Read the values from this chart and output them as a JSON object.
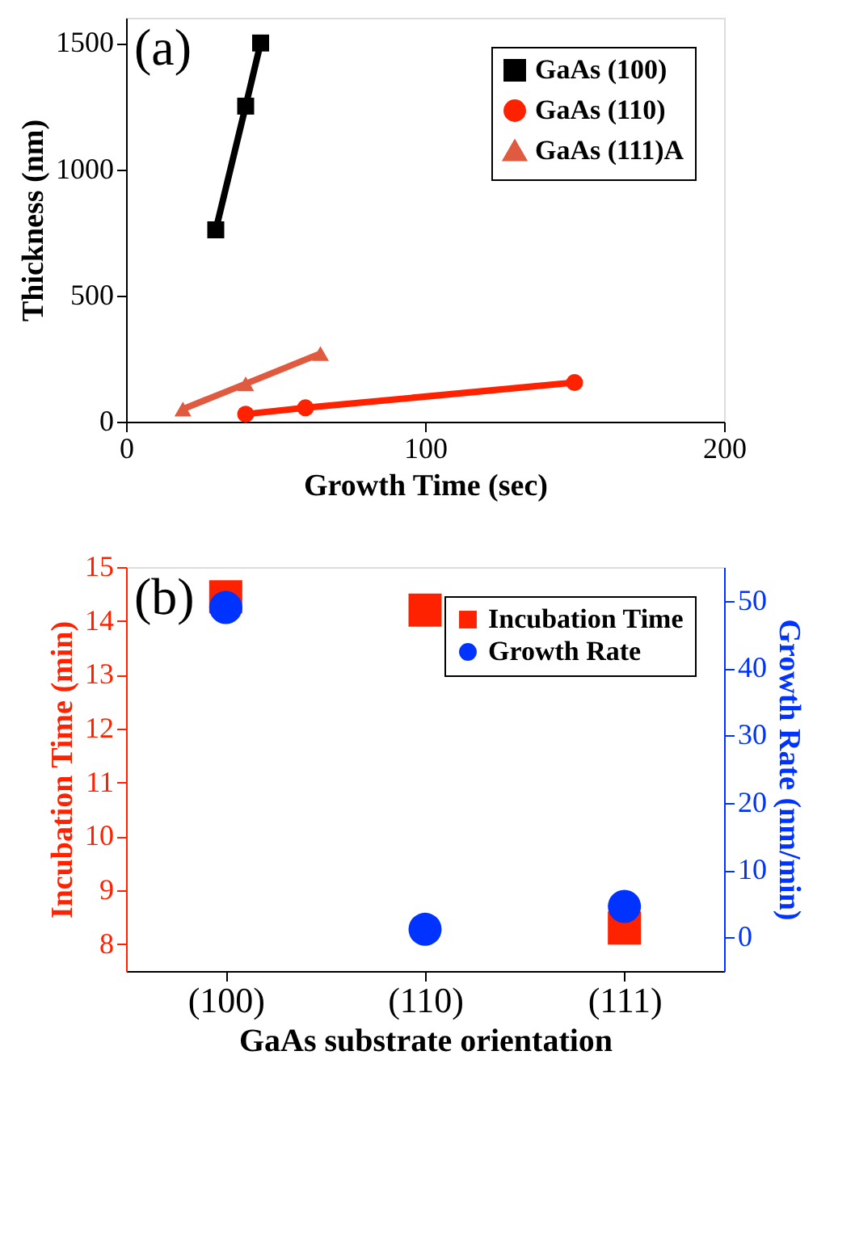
{
  "chart_data": [
    {
      "type": "line",
      "xlabel": "Growth Time (sec)",
      "ylabel": "Thickness (nm)",
      "xlim": [
        0,
        200
      ],
      "xticks": [
        0,
        100,
        200
      ],
      "ylim": [
        0,
        1600
      ],
      "yticks": [
        0,
        500,
        1000,
        1500
      ],
      "grid": false,
      "legend": "top right",
      "annotations": [
        "(a)"
      ],
      "line_style": "solid",
      "series": [
        {
          "name": "GaAs (100)",
          "color": "#000000",
          "marker": "square",
          "x": [
            30,
            40,
            45
          ],
          "values": [
            760,
            1250,
            1500
          ]
        },
        {
          "name": "GaAs (110)",
          "color": "#ff2200",
          "marker": "circle",
          "x": [
            40,
            60,
            150
          ],
          "values": [
            30,
            55,
            155
          ]
        },
        {
          "name": "GaAs (111)A",
          "color": "#e05a40",
          "marker": "triangle",
          "x": [
            19,
            40,
            65
          ],
          "values": [
            50,
            150,
            270
          ]
        }
      ]
    },
    {
      "type": "scatter",
      "xlabel": "GaAs substrate orientation",
      "ylabel": "Incubation Time (min)",
      "y2label": "Growth Rate (nm/min)",
      "categories": [
        "(100)",
        "(110)",
        "(111)"
      ],
      "ylim": [
        7.5,
        15
      ],
      "yticks": [
        8,
        9,
        10,
        11,
        12,
        13,
        14,
        15
      ],
      "y2lim": [
        -5,
        55
      ],
      "y2ticks": [
        0,
        10,
        20,
        30,
        40,
        50
      ],
      "grid": false,
      "legend": "top right",
      "annotations": [
        "(b)"
      ],
      "series": [
        {
          "name": "Incubation Time",
          "color": "#ff2200",
          "marker": "square",
          "values": [
            14.45,
            14.2,
            8.3
          ]
        },
        {
          "name": "Growth Rate",
          "color": "#0033ff",
          "marker": "circle",
          "axis": "y2",
          "values": [
            49,
            1.2,
            4.6
          ]
        }
      ]
    }
  ]
}
